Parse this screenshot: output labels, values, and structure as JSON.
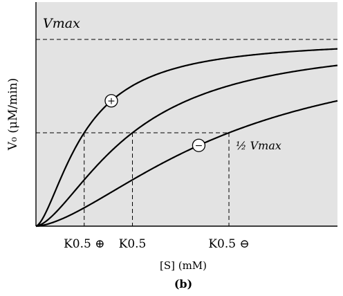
{
  "chart_data": {
    "type": "line",
    "subtitle": "(b)",
    "xlabel": "[S] (mM)",
    "ylabel": "V₀ (μM/min)",
    "xlim": [
      0,
      10
    ],
    "ylim": [
      0,
      1.2
    ],
    "vmax": 1.0,
    "grid": false,
    "legend": "none",
    "annotations": {
      "vmax_label": "Vmax",
      "half_vmax_label": "½ Vmax"
    },
    "x_ticks": [
      {
        "label": "K0.5 ⊕",
        "x": 1.6
      },
      {
        "label": "K0.5",
        "x": 3.2
      },
      {
        "label": "K0.5 ⊖",
        "x": 6.4
      }
    ],
    "series": [
      {
        "marker": "+",
        "k": 1.6,
        "n": 1.6,
        "marker_x": 2.5
      },
      {
        "k": 3.2,
        "n": 1.6
      },
      {
        "marker": "−",
        "k": 6.4,
        "n": 1.6,
        "marker_x": 5.4
      }
    ],
    "colors": {
      "panel": "#e3e3e3",
      "line": "#000000"
    }
  }
}
